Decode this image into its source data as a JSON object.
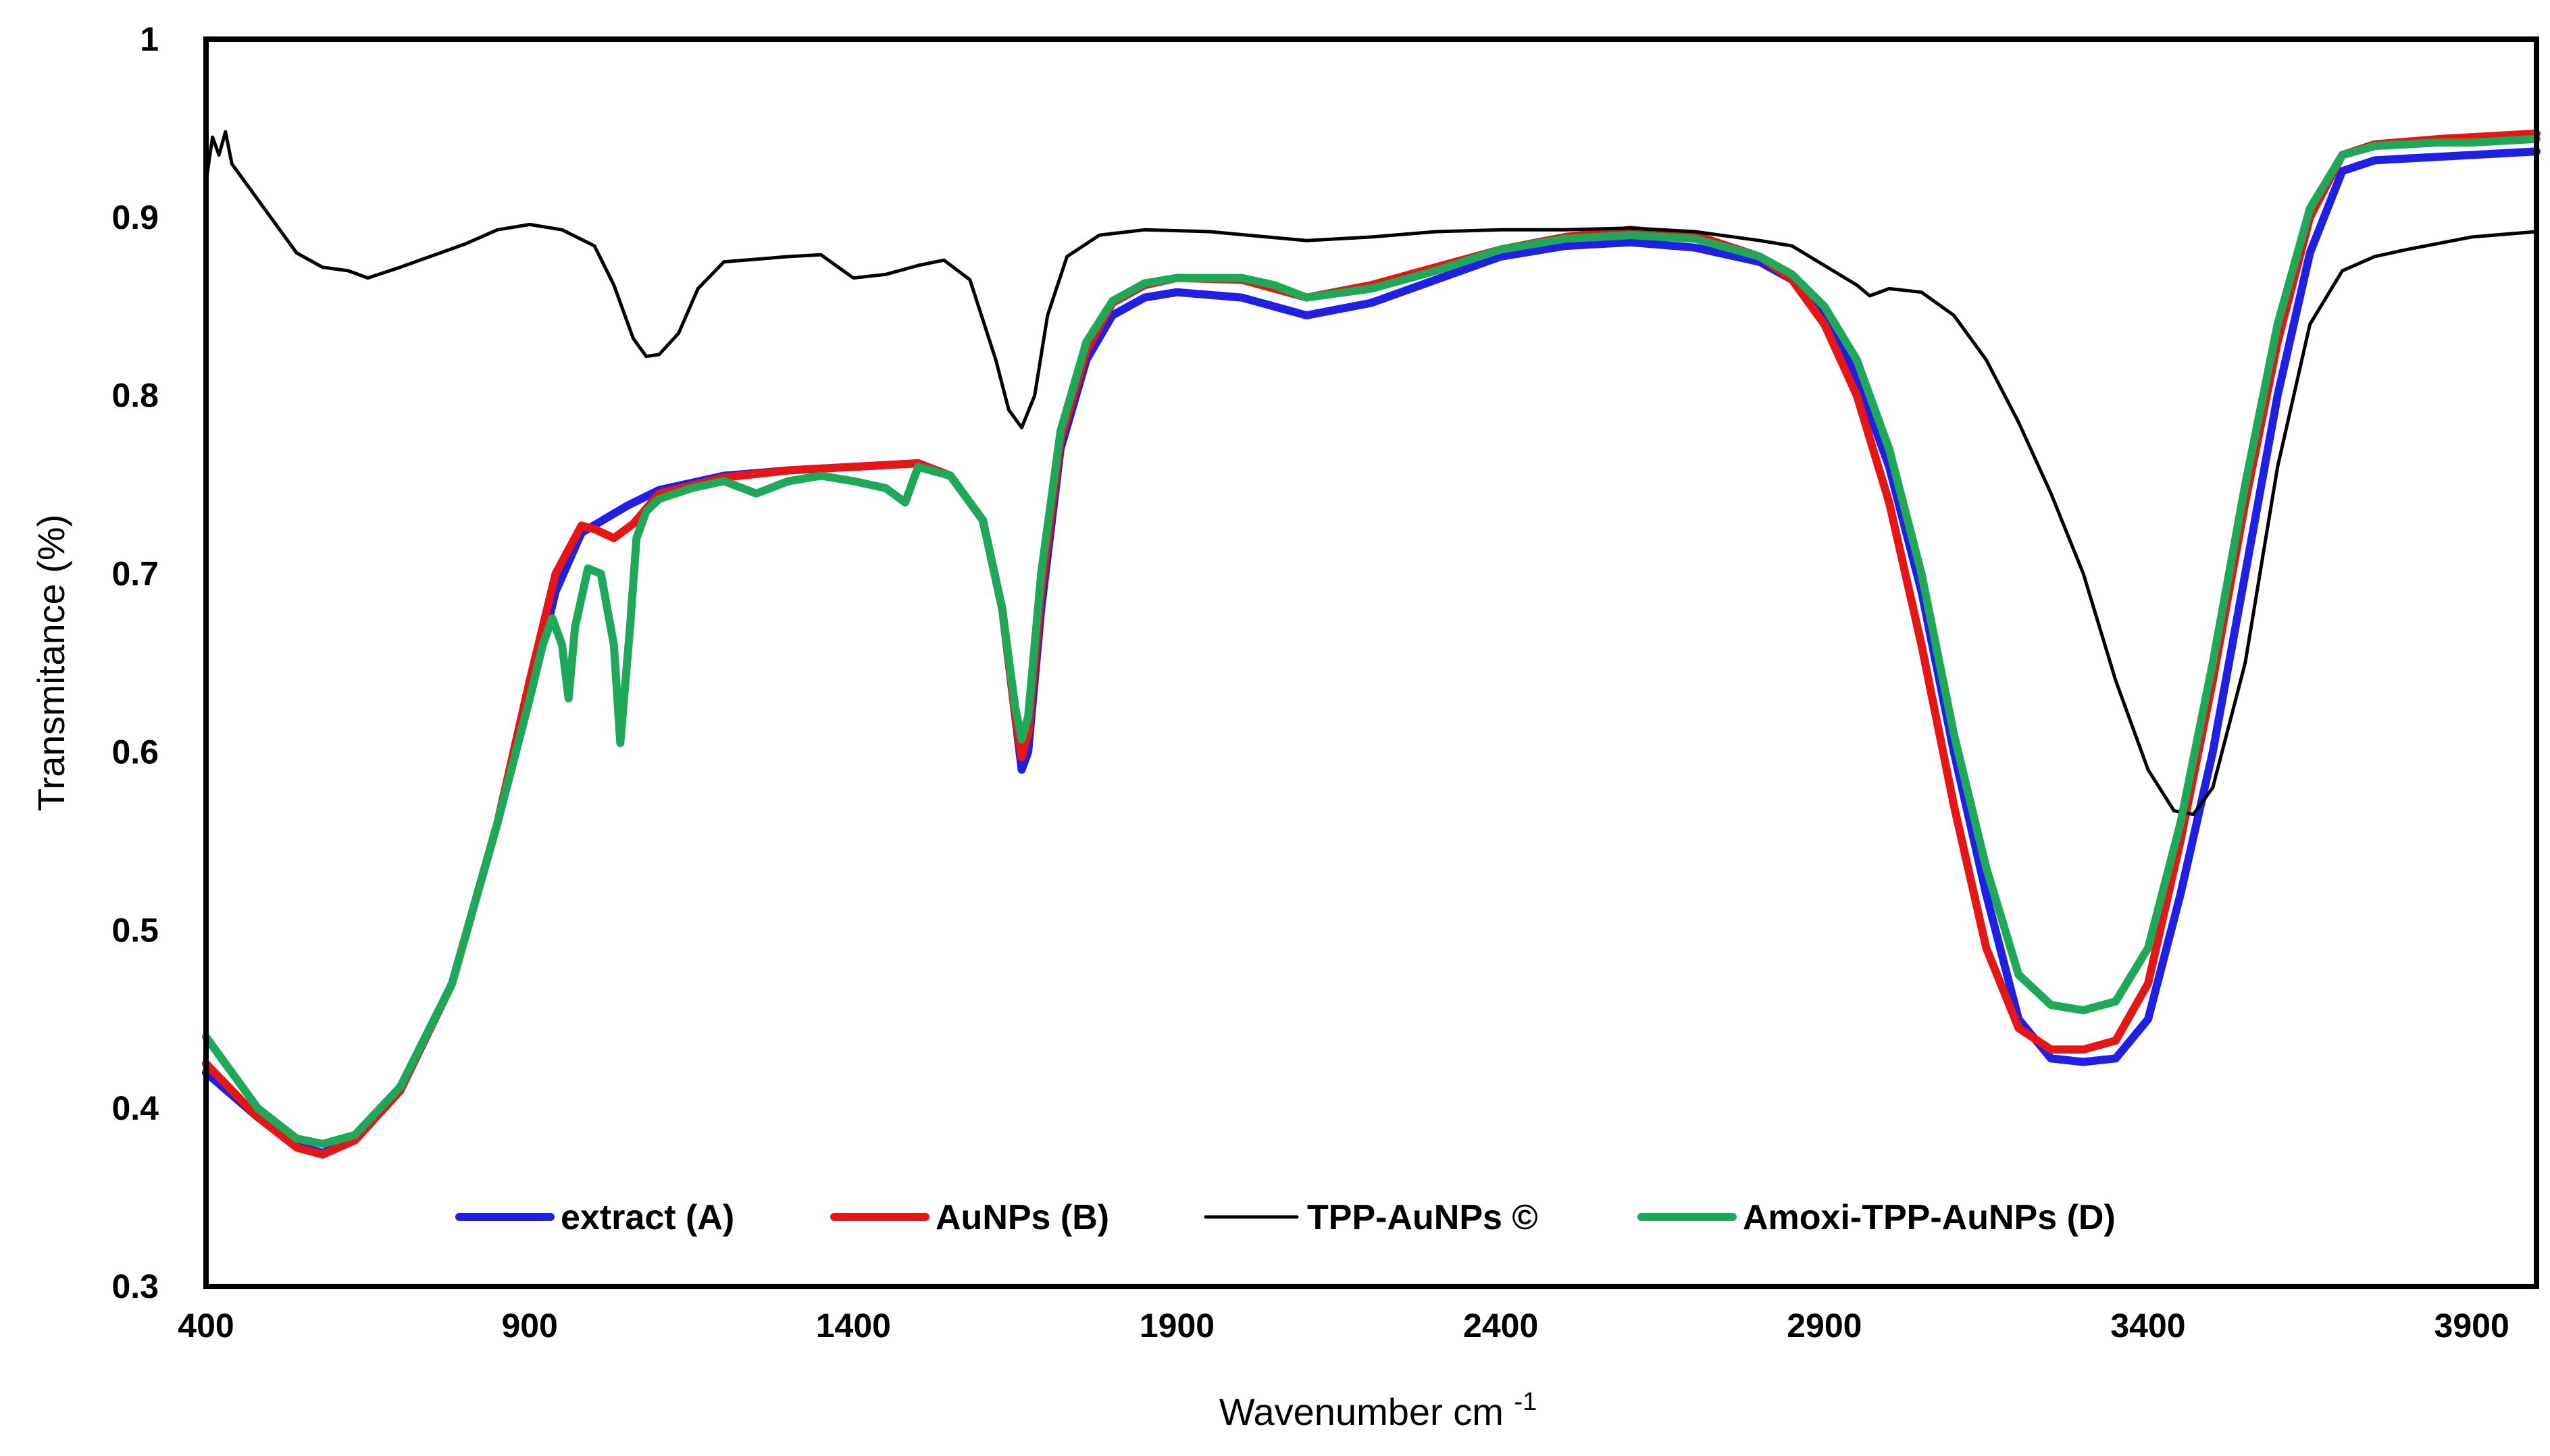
{
  "chart_data": {
    "type": "line",
    "title": "",
    "xlabel": "Wavenumber cm",
    "xlabel_superscript": "-1",
    "ylabel": "Transmitance (%)",
    "xlim": [
      400,
      4000
    ],
    "ylim": [
      0.3,
      1.0
    ],
    "xticks": [
      400,
      900,
      1400,
      1900,
      2400,
      2900,
      3400,
      3900
    ],
    "xtick_labels": [
      "400",
      "900",
      "1400",
      "1900",
      "2400",
      "2900",
      "3400",
      "3900"
    ],
    "yticks": [
      0.3,
      0.4,
      0.5,
      0.6,
      0.7,
      0.8,
      0.9,
      1.0
    ],
    "ytick_labels": [
      "0.3",
      "0.4",
      "0.5",
      "0.6",
      "0.7",
      "0.8",
      "0.9",
      "1"
    ],
    "legend_position": "bottom-center",
    "series": [
      {
        "name": "extract (A)",
        "color": "#1f1fe6",
        "width": "thick",
        "points": [
          [
            400,
            0.42
          ],
          [
            480,
            0.395
          ],
          [
            540,
            0.379
          ],
          [
            580,
            0.375
          ],
          [
            630,
            0.382
          ],
          [
            700,
            0.41
          ],
          [
            780,
            0.47
          ],
          [
            850,
            0.56
          ],
          [
            900,
            0.63
          ],
          [
            940,
            0.69
          ],
          [
            980,
            0.723
          ],
          [
            1050,
            0.738
          ],
          [
            1100,
            0.747
          ],
          [
            1200,
            0.755
          ],
          [
            1300,
            0.758
          ],
          [
            1400,
            0.76
          ],
          [
            1500,
            0.762
          ],
          [
            1550,
            0.755
          ],
          [
            1600,
            0.73
          ],
          [
            1630,
            0.68
          ],
          [
            1650,
            0.62
          ],
          [
            1660,
            0.59
          ],
          [
            1670,
            0.6
          ],
          [
            1690,
            0.68
          ],
          [
            1720,
            0.77
          ],
          [
            1760,
            0.82
          ],
          [
            1800,
            0.845
          ],
          [
            1850,
            0.855
          ],
          [
            1900,
            0.858
          ],
          [
            2000,
            0.855
          ],
          [
            2050,
            0.85
          ],
          [
            2100,
            0.845
          ],
          [
            2200,
            0.852
          ],
          [
            2300,
            0.865
          ],
          [
            2400,
            0.878
          ],
          [
            2500,
            0.884
          ],
          [
            2600,
            0.886
          ],
          [
            2700,
            0.883
          ],
          [
            2800,
            0.875
          ],
          [
            2850,
            0.865
          ],
          [
            2900,
            0.845
          ],
          [
            2950,
            0.81
          ],
          [
            3000,
            0.76
          ],
          [
            3050,
            0.69
          ],
          [
            3100,
            0.6
          ],
          [
            3150,
            0.52
          ],
          [
            3200,
            0.45
          ],
          [
            3250,
            0.428
          ],
          [
            3300,
            0.426
          ],
          [
            3350,
            0.428
          ],
          [
            3400,
            0.45
          ],
          [
            3450,
            0.52
          ],
          [
            3500,
            0.6
          ],
          [
            3550,
            0.7
          ],
          [
            3600,
            0.8
          ],
          [
            3650,
            0.88
          ],
          [
            3700,
            0.926
          ],
          [
            3750,
            0.932
          ],
          [
            3850,
            0.934
          ],
          [
            3900,
            0.935
          ],
          [
            4000,
            0.937
          ]
        ]
      },
      {
        "name": "AuNPs (B)",
        "color": "#e61616",
        "width": "thick",
        "points": [
          [
            400,
            0.425
          ],
          [
            480,
            0.395
          ],
          [
            540,
            0.378
          ],
          [
            580,
            0.374
          ],
          [
            630,
            0.382
          ],
          [
            700,
            0.41
          ],
          [
            780,
            0.47
          ],
          [
            850,
            0.56
          ],
          [
            900,
            0.64
          ],
          [
            940,
            0.7
          ],
          [
            980,
            0.727
          ],
          [
            1000,
            0.725
          ],
          [
            1030,
            0.72
          ],
          [
            1060,
            0.728
          ],
          [
            1100,
            0.745
          ],
          [
            1200,
            0.754
          ],
          [
            1300,
            0.758
          ],
          [
            1400,
            0.76
          ],
          [
            1500,
            0.762
          ],
          [
            1550,
            0.755
          ],
          [
            1600,
            0.73
          ],
          [
            1630,
            0.68
          ],
          [
            1650,
            0.62
          ],
          [
            1660,
            0.597
          ],
          [
            1670,
            0.61
          ],
          [
            1690,
            0.69
          ],
          [
            1720,
            0.775
          ],
          [
            1760,
            0.825
          ],
          [
            1800,
            0.852
          ],
          [
            1850,
            0.862
          ],
          [
            1900,
            0.866
          ],
          [
            2000,
            0.865
          ],
          [
            2050,
            0.86
          ],
          [
            2100,
            0.855
          ],
          [
            2200,
            0.862
          ],
          [
            2300,
            0.872
          ],
          [
            2400,
            0.882
          ],
          [
            2500,
            0.889
          ],
          [
            2600,
            0.893
          ],
          [
            2700,
            0.89
          ],
          [
            2800,
            0.878
          ],
          [
            2850,
            0.865
          ],
          [
            2900,
            0.84
          ],
          [
            2950,
            0.8
          ],
          [
            3000,
            0.74
          ],
          [
            3050,
            0.66
          ],
          [
            3100,
            0.57
          ],
          [
            3150,
            0.49
          ],
          [
            3200,
            0.445
          ],
          [
            3250,
            0.433
          ],
          [
            3300,
            0.433
          ],
          [
            3350,
            0.438
          ],
          [
            3400,
            0.47
          ],
          [
            3450,
            0.55
          ],
          [
            3500,
            0.64
          ],
          [
            3550,
            0.74
          ],
          [
            3600,
            0.83
          ],
          [
            3650,
            0.9
          ],
          [
            3700,
            0.935
          ],
          [
            3750,
            0.941
          ],
          [
            3850,
            0.944
          ],
          [
            3900,
            0.945
          ],
          [
            4000,
            0.947
          ]
        ]
      },
      {
        "name": "TPP-AuNPs ©",
        "color": "#000000",
        "width": "thin",
        "points": [
          [
            400,
            0.92
          ],
          [
            410,
            0.945
          ],
          [
            420,
            0.935
          ],
          [
            430,
            0.948
          ],
          [
            440,
            0.93
          ],
          [
            460,
            0.92
          ],
          [
            500,
            0.9
          ],
          [
            540,
            0.88
          ],
          [
            580,
            0.872
          ],
          [
            620,
            0.87
          ],
          [
            650,
            0.866
          ],
          [
            700,
            0.872
          ],
          [
            800,
            0.885
          ],
          [
            850,
            0.893
          ],
          [
            900,
            0.896
          ],
          [
            950,
            0.893
          ],
          [
            1000,
            0.884
          ],
          [
            1030,
            0.862
          ],
          [
            1060,
            0.832
          ],
          [
            1080,
            0.822
          ],
          [
            1100,
            0.823
          ],
          [
            1130,
            0.835
          ],
          [
            1160,
            0.86
          ],
          [
            1200,
            0.875
          ],
          [
            1300,
            0.878
          ],
          [
            1350,
            0.879
          ],
          [
            1400,
            0.866
          ],
          [
            1450,
            0.868
          ],
          [
            1500,
            0.873
          ],
          [
            1540,
            0.876
          ],
          [
            1580,
            0.865
          ],
          [
            1620,
            0.82
          ],
          [
            1640,
            0.792
          ],
          [
            1660,
            0.782
          ],
          [
            1680,
            0.8
          ],
          [
            1700,
            0.845
          ],
          [
            1730,
            0.878
          ],
          [
            1780,
            0.89
          ],
          [
            1850,
            0.893
          ],
          [
            1950,
            0.892
          ],
          [
            2100,
            0.887
          ],
          [
            2200,
            0.889
          ],
          [
            2300,
            0.892
          ],
          [
            2400,
            0.893
          ],
          [
            2500,
            0.893
          ],
          [
            2600,
            0.894
          ],
          [
            2700,
            0.892
          ],
          [
            2800,
            0.887
          ],
          [
            2850,
            0.884
          ],
          [
            2900,
            0.873
          ],
          [
            2950,
            0.862
          ],
          [
            2970,
            0.856
          ],
          [
            3000,
            0.86
          ],
          [
            3050,
            0.858
          ],
          [
            3100,
            0.845
          ],
          [
            3150,
            0.82
          ],
          [
            3200,
            0.785
          ],
          [
            3250,
            0.745
          ],
          [
            3300,
            0.7
          ],
          [
            3350,
            0.64
          ],
          [
            3400,
            0.59
          ],
          [
            3440,
            0.567
          ],
          [
            3470,
            0.565
          ],
          [
            3500,
            0.58
          ],
          [
            3550,
            0.65
          ],
          [
            3600,
            0.76
          ],
          [
            3650,
            0.84
          ],
          [
            3700,
            0.87
          ],
          [
            3750,
            0.878
          ],
          [
            3800,
            0.882
          ],
          [
            3900,
            0.889
          ],
          [
            4000,
            0.892
          ]
        ]
      },
      {
        "name": "Amoxi-TPP-AuNPs (D)",
        "color": "#1fa858",
        "width": "thick",
        "points": [
          [
            400,
            0.44
          ],
          [
            480,
            0.4
          ],
          [
            540,
            0.383
          ],
          [
            580,
            0.38
          ],
          [
            630,
            0.385
          ],
          [
            700,
            0.412
          ],
          [
            780,
            0.47
          ],
          [
            850,
            0.56
          ],
          [
            900,
            0.63
          ],
          [
            920,
            0.66
          ],
          [
            935,
            0.675
          ],
          [
            950,
            0.66
          ],
          [
            960,
            0.63
          ],
          [
            970,
            0.67
          ],
          [
            990,
            0.703
          ],
          [
            1010,
            0.7
          ],
          [
            1030,
            0.66
          ],
          [
            1040,
            0.605
          ],
          [
            1055,
            0.67
          ],
          [
            1065,
            0.72
          ],
          [
            1080,
            0.735
          ],
          [
            1100,
            0.742
          ],
          [
            1150,
            0.748
          ],
          [
            1200,
            0.752
          ],
          [
            1250,
            0.745
          ],
          [
            1300,
            0.752
          ],
          [
            1350,
            0.755
          ],
          [
            1400,
            0.752
          ],
          [
            1450,
            0.748
          ],
          [
            1480,
            0.74
          ],
          [
            1500,
            0.76
          ],
          [
            1550,
            0.755
          ],
          [
            1600,
            0.73
          ],
          [
            1630,
            0.68
          ],
          [
            1650,
            0.625
          ],
          [
            1660,
            0.607
          ],
          [
            1670,
            0.62
          ],
          [
            1690,
            0.7
          ],
          [
            1720,
            0.78
          ],
          [
            1760,
            0.83
          ],
          [
            1800,
            0.853
          ],
          [
            1850,
            0.863
          ],
          [
            1900,
            0.866
          ],
          [
            2000,
            0.866
          ],
          [
            2050,
            0.862
          ],
          [
            2100,
            0.855
          ],
          [
            2200,
            0.86
          ],
          [
            2300,
            0.87
          ],
          [
            2400,
            0.882
          ],
          [
            2500,
            0.888
          ],
          [
            2600,
            0.89
          ],
          [
            2700,
            0.888
          ],
          [
            2800,
            0.878
          ],
          [
            2850,
            0.868
          ],
          [
            2900,
            0.85
          ],
          [
            2950,
            0.82
          ],
          [
            3000,
            0.77
          ],
          [
            3050,
            0.7
          ],
          [
            3100,
            0.61
          ],
          [
            3150,
            0.535
          ],
          [
            3200,
            0.475
          ],
          [
            3250,
            0.458
          ],
          [
            3300,
            0.455
          ],
          [
            3350,
            0.46
          ],
          [
            3400,
            0.49
          ],
          [
            3450,
            0.56
          ],
          [
            3500,
            0.65
          ],
          [
            3550,
            0.75
          ],
          [
            3600,
            0.84
          ],
          [
            3650,
            0.905
          ],
          [
            3700,
            0.935
          ],
          [
            3750,
            0.94
          ],
          [
            3850,
            0.942
          ],
          [
            3900,
            0.942
          ],
          [
            4000,
            0.944
          ]
        ]
      }
    ]
  }
}
